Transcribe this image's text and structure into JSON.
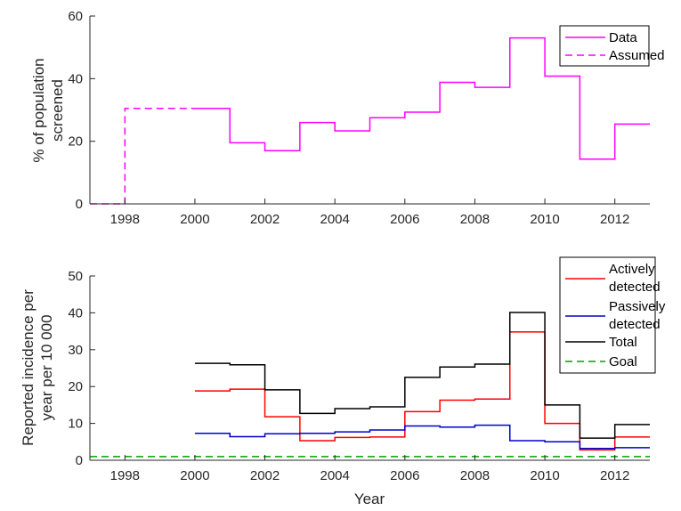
{
  "colors": {
    "data": "#ff00ff",
    "active": "#ff0000",
    "passive": "#0000cc",
    "total": "#000000",
    "goal": "#00a000",
    "axis": "#262626"
  },
  "chart_data": [
    {
      "type": "line",
      "style": "stairs",
      "xlabel": "",
      "ylabel_lines": [
        "% of population",
        "screened"
      ],
      "xlim": [
        1997,
        2013
      ],
      "ylim": [
        0,
        60
      ],
      "xticks": [
        "1998",
        "2000",
        "2002",
        "2004",
        "2006",
        "2008",
        "2010",
        "2012"
      ],
      "yticks": [
        "0",
        "20",
        "40",
        "60"
      ],
      "legend": {
        "placement": "top-right",
        "entries": [
          "Data",
          "Assumed"
        ]
      },
      "series": [
        {
          "name": "Data",
          "line": "solid",
          "steps": [
            {
              "x0": 2000,
              "x1": 2001,
              "y": 30.5
            },
            {
              "x0": 2001,
              "x1": 2002,
              "y": 19.5
            },
            {
              "x0": 2002,
              "x1": 2003,
              "y": 17
            },
            {
              "x0": 2003,
              "x1": 2004,
              "y": 26
            },
            {
              "x0": 2004,
              "x1": 2005,
              "y": 23.3
            },
            {
              "x0": 2005,
              "x1": 2006,
              "y": 27.5
            },
            {
              "x0": 2006,
              "x1": 2007,
              "y": 29.3
            },
            {
              "x0": 2007,
              "x1": 2008,
              "y": 38.8
            },
            {
              "x0": 2008,
              "x1": 2009,
              "y": 37.2
            },
            {
              "x0": 2009,
              "x1": 2010,
              "y": 53
            },
            {
              "x0": 2010,
              "x1": 2011,
              "y": 40.8
            },
            {
              "x0": 2011,
              "x1": 2012,
              "y": 14.3
            },
            {
              "x0": 2012,
              "x1": 2013,
              "y": 25.5
            }
          ]
        },
        {
          "name": "Assumed",
          "line": "dashed",
          "steps": [
            {
              "x0": 1997,
              "x1": 1998,
              "y": 0
            },
            {
              "x0": 1998,
              "x1": 2000,
              "y": 30.5
            }
          ]
        }
      ]
    },
    {
      "type": "line",
      "style": "stairs",
      "xlabel": "Year",
      "ylabel_lines": [
        "Reported incidence per",
        "year per 10 000"
      ],
      "xlim": [
        1997,
        2013
      ],
      "ylim": [
        0,
        50
      ],
      "xticks": [
        "1998",
        "2000",
        "2002",
        "2004",
        "2006",
        "2008",
        "2010",
        "2012"
      ],
      "yticks": [
        "0",
        "10",
        "20",
        "30",
        "40",
        "50"
      ],
      "legend": {
        "placement": "top-right",
        "entries": [
          [
            "Actively",
            "detected"
          ],
          [
            "Passively",
            "detected"
          ],
          [
            "Total"
          ],
          [
            "Goal"
          ]
        ]
      },
      "series": [
        {
          "name": "Actively detected",
          "line": "solid",
          "steps": [
            {
              "x0": 2000,
              "x1": 2001,
              "y": 18.8
            },
            {
              "x0": 2001,
              "x1": 2002,
              "y": 19.3
            },
            {
              "x0": 2002,
              "x1": 2003,
              "y": 11.8
            },
            {
              "x0": 2003,
              "x1": 2004,
              "y": 5.3
            },
            {
              "x0": 2004,
              "x1": 2005,
              "y": 6.2
            },
            {
              "x0": 2005,
              "x1": 2006,
              "y": 6.3
            },
            {
              "x0": 2006,
              "x1": 2007,
              "y": 13.2
            },
            {
              "x0": 2007,
              "x1": 2008,
              "y": 16.3
            },
            {
              "x0": 2008,
              "x1": 2009,
              "y": 16.6
            },
            {
              "x0": 2009,
              "x1": 2010,
              "y": 34.8
            },
            {
              "x0": 2010,
              "x1": 2011,
              "y": 10
            },
            {
              "x0": 2011,
              "x1": 2012,
              "y": 2.8
            },
            {
              "x0": 2012,
              "x1": 2013,
              "y": 6.3
            }
          ]
        },
        {
          "name": "Passively detected",
          "line": "solid",
          "steps": [
            {
              "x0": 2000,
              "x1": 2001,
              "y": 7.3
            },
            {
              "x0": 2001,
              "x1": 2002,
              "y": 6.4
            },
            {
              "x0": 2002,
              "x1": 2003,
              "y": 7.2
            },
            {
              "x0": 2003,
              "x1": 2004,
              "y": 7.3
            },
            {
              "x0": 2004,
              "x1": 2005,
              "y": 7.7
            },
            {
              "x0": 2005,
              "x1": 2006,
              "y": 8.2
            },
            {
              "x0": 2006,
              "x1": 2007,
              "y": 9.3
            },
            {
              "x0": 2007,
              "x1": 2008,
              "y": 9
            },
            {
              "x0": 2008,
              "x1": 2009,
              "y": 9.5
            },
            {
              "x0": 2009,
              "x1": 2010,
              "y": 5.3
            },
            {
              "x0": 2010,
              "x1": 2011,
              "y": 5
            },
            {
              "x0": 2011,
              "x1": 2012,
              "y": 3.2
            },
            {
              "x0": 2012,
              "x1": 2013,
              "y": 3.4
            }
          ]
        },
        {
          "name": "Total",
          "line": "solid",
          "steps": [
            {
              "x0": 2000,
              "x1": 2001,
              "y": 26.3
            },
            {
              "x0": 2001,
              "x1": 2002,
              "y": 25.9
            },
            {
              "x0": 2002,
              "x1": 2003,
              "y": 19.1
            },
            {
              "x0": 2003,
              "x1": 2004,
              "y": 12.7
            },
            {
              "x0": 2004,
              "x1": 2005,
              "y": 14
            },
            {
              "x0": 2005,
              "x1": 2006,
              "y": 14.5
            },
            {
              "x0": 2006,
              "x1": 2007,
              "y": 22.5
            },
            {
              "x0": 2007,
              "x1": 2008,
              "y": 25.3
            },
            {
              "x0": 2008,
              "x1": 2009,
              "y": 26.1
            },
            {
              "x0": 2009,
              "x1": 2010,
              "y": 40.1
            },
            {
              "x0": 2010,
              "x1": 2011,
              "y": 15
            },
            {
              "x0": 2011,
              "x1": 2012,
              "y": 6
            },
            {
              "x0": 2012,
              "x1": 2013,
              "y": 9.7
            }
          ]
        },
        {
          "name": "Goal",
          "line": "dashed",
          "steps": [
            {
              "x0": 1997,
              "x1": 2013,
              "y": 1
            }
          ]
        }
      ]
    }
  ]
}
